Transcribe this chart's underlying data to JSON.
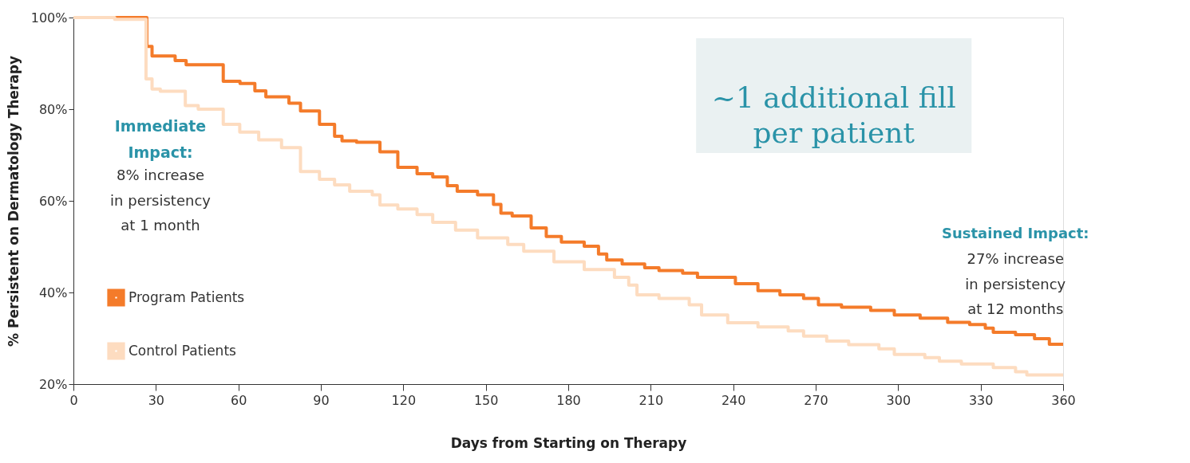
{
  "chart_data": {
    "type": "step",
    "xlabel": "Days from Starting on Therapy",
    "ylabel": "% Persistent on Dermatology Therapy",
    "xlim": [
      0,
      360
    ],
    "xticks": [
      0,
      30,
      60,
      90,
      120,
      150,
      180,
      210,
      240,
      270,
      300,
      330,
      360
    ],
    "ylim": [
      20,
      100
    ],
    "yticks": [
      {
        "value": 20,
        "label": "20%"
      },
      {
        "value": 40,
        "label": "40%"
      },
      {
        "value": 60,
        "label": "60%"
      },
      {
        "value": 80,
        "label": "80%"
      },
      {
        "value": 100,
        "label": "100%"
      }
    ],
    "grid": false,
    "legend": "bottom left",
    "marker": "none",
    "line_style": "solid",
    "series": [
      {
        "name": "Program Patients",
        "color": "#f47b2a",
        "x": [
          0,
          26.7,
          28.6,
          37,
          41,
          54.5,
          60.6,
          66,
          70,
          78.4,
          82.6,
          89.5,
          95,
          97.7,
          103,
          111.5,
          118,
          125,
          130.7,
          136,
          139.6,
          147,
          152.8,
          155.5,
          159.6,
          166.5,
          172,
          177.5,
          185.8,
          191,
          194,
          199.6,
          207.8,
          213,
          221.6,
          227,
          240.8,
          249,
          257,
          265.6,
          271,
          279.4,
          290,
          298.6,
          308,
          318,
          326,
          331.7,
          334.6,
          342.7,
          349.6,
          355,
          360
        ],
        "values": [
          100,
          93.7,
          91.6,
          90.6,
          89.7,
          86.1,
          85.6,
          84,
          82.7,
          81.3,
          79.6,
          76.7,
          74.1,
          73.1,
          72.8,
          70.7,
          67.3,
          65.9,
          65.2,
          63.3,
          62.1,
          61.3,
          59.2,
          57.3,
          56.7,
          54.1,
          52.2,
          51,
          50.1,
          48.4,
          47.1,
          46.2,
          45.4,
          44.8,
          44.2,
          43.3,
          41.9,
          40.4,
          39.5,
          38.7,
          37.3,
          36.8,
          36.1,
          35.1,
          34.4,
          33.5,
          33,
          32.2,
          31.3,
          30.8,
          29.9,
          28.7,
          28.7
        ]
      },
      {
        "name": "Control Patients",
        "color": "#fddcc0",
        "x": [
          0,
          15,
          26.4,
          28.6,
          31.6,
          40.7,
          45.4,
          54.5,
          60.5,
          67.4,
          75.7,
          82.6,
          89.5,
          95,
          100.5,
          108.7,
          111.5,
          118,
          125,
          130.7,
          139,
          147,
          158,
          163.8,
          174.8,
          185.8,
          196.8,
          202,
          205,
          213,
          224,
          228.5,
          238,
          249,
          260,
          265.6,
          274,
          282,
          293,
          298.6,
          309.7,
          315,
          323,
          334.6,
          342.7,
          346.8,
          360
        ],
        "values": [
          100,
          99.6,
          86.6,
          84.4,
          83.9,
          80.8,
          80,
          76.7,
          75,
          73.3,
          71.6,
          66.4,
          64.7,
          63.5,
          62.1,
          61.3,
          59.1,
          58.2,
          57,
          55.3,
          53.6,
          51.9,
          50.5,
          49,
          46.7,
          45,
          43.3,
          41.6,
          39.5,
          38.7,
          37.3,
          35.1,
          33.4,
          32.5,
          31.6,
          30.5,
          29.4,
          28.6,
          27.7,
          26.5,
          25.8,
          25,
          24.4,
          23.6,
          22.7,
          22,
          22
        ]
      }
    ],
    "annotations": [
      "~1 additional fill\nper patient",
      "Immediate\nImpact:",
      "8% increase\nin persistency\nat 1 month",
      "Sustained Impact:",
      "27% increase\nin persistency\nat 12 months"
    ]
  }
}
